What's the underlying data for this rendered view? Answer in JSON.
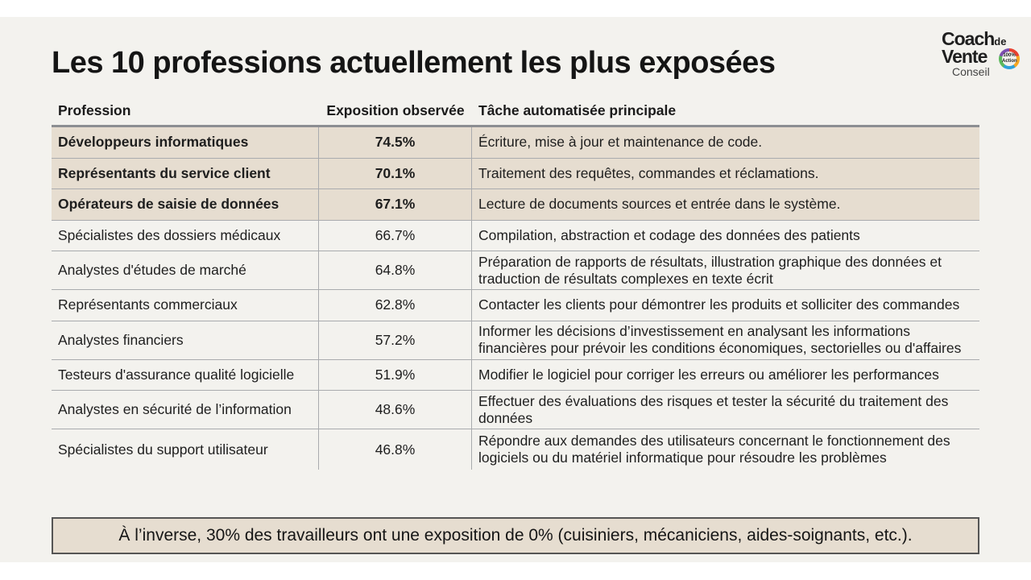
{
  "title": "Les 10 professions actuellement les plus exposées",
  "logo": {
    "line1": "Coach",
    "line1_small": "de",
    "line2": "Vente",
    "line3": "Conseil",
    "badge": "100% Action"
  },
  "table": {
    "headers": {
      "profession": "Profession",
      "exposure": "Exposition observée",
      "task": "Tâche automatisée principale"
    },
    "rows": [
      {
        "profession": "Développeurs informatiques",
        "exposure": "74.5%",
        "task": "Écriture, mise à jour et maintenance de code.",
        "highlight": true
      },
      {
        "profession": "Représentants du service client",
        "exposure": "70.1%",
        "task": "Traitement des requêtes, commandes et réclamations.",
        "highlight": true
      },
      {
        "profession": "Opérateurs de saisie de données",
        "exposure": "67.1%",
        "task": "Lecture de documents sources et entrée dans le système.",
        "highlight": true
      },
      {
        "profession": "Spécialistes des dossiers médicaux",
        "exposure": "66.7%",
        "task": "Compilation, abstraction et codage des données des patients",
        "highlight": false
      },
      {
        "profession": "Analystes d'études de marché",
        "exposure": "64.8%",
        "task": "Préparation de rapports de résultats, illustration graphique des données et traduction de résultats complexes en texte écrit",
        "highlight": false
      },
      {
        "profession": "Représentants commerciaux",
        "exposure": "62.8%",
        "task": "Contacter les clients pour démontrer les produits et solliciter des commandes",
        "highlight": false
      },
      {
        "profession": "Analystes financiers",
        "exposure": "57.2%",
        "task": "Informer les décisions d’investissement en analysant les informations financières pour prévoir les conditions économiques, sectorielles ou d'affaires",
        "highlight": false
      },
      {
        "profession": "Testeurs d'assurance qualité logicielle",
        "exposure": "51.9%",
        "task": "Modifier le logiciel pour corriger les erreurs ou améliorer les performances",
        "highlight": false
      },
      {
        "profession": "Analystes en sécurité de l’information",
        "exposure": "48.6%",
        "task": "Effectuer des évaluations des risques et tester la sécurité du traitement des données",
        "highlight": false
      },
      {
        "profession": "Spécialistes du support utilisateur",
        "exposure": "46.8%",
        "task": "Répondre aux demandes des utilisateurs concernant le fonctionnement des logiciels ou du matériel informatique pour résoudre les problèmes",
        "highlight": false
      }
    ]
  },
  "footer": "À l’inverse, 30% des travailleurs ont une exposition de 0% (cuisiniers, mécaniciens, aides-soignants, etc.).",
  "colors": {
    "highlight_row": "#e6ddd0",
    "background": "#f3f2ee",
    "rule": "#8c8e92"
  }
}
